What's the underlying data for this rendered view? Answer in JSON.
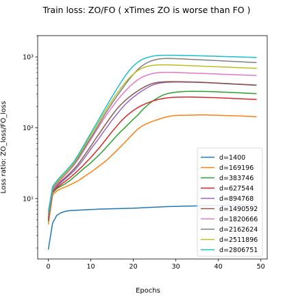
{
  "chart_data": {
    "type": "line",
    "title": "Train loss: ZO/FO ( xTimes ZO is worse than FO )",
    "xlabel": "Epochs",
    "ylabel": "Loss ratio: ZO_loss/FO_loss",
    "y_scale": "log",
    "xlim": [
      -2.5,
      51.5
    ],
    "ylim": [
      1.4,
      2000
    ],
    "xticks": [
      0,
      10,
      20,
      30,
      40,
      50
    ],
    "yticks": [
      10,
      100,
      1000
    ],
    "ytick_labels": [
      "10¹",
      "10²",
      "10³"
    ],
    "grid": false,
    "legend_position": "lower-right",
    "x": [
      0,
      1,
      2,
      3,
      4,
      5,
      6,
      7,
      8,
      9,
      10,
      11,
      12,
      13,
      14,
      15,
      16,
      17,
      18,
      19,
      20,
      21,
      22,
      23,
      24,
      25,
      26,
      27,
      28,
      29,
      30,
      31,
      32,
      33,
      34,
      35,
      36,
      37,
      38,
      39,
      40,
      41,
      42,
      43,
      44,
      45,
      46,
      47,
      48,
      49
    ],
    "series": [
      {
        "name": "d=1400",
        "color": "#1f77b4",
        "values": [
          1.9,
          4.5,
          5.8,
          6.3,
          6.6,
          6.75,
          6.8,
          6.85,
          6.9,
          6.95,
          7.0,
          7.05,
          7.1,
          7.12,
          7.15,
          7.18,
          7.2,
          7.22,
          7.25,
          7.28,
          7.3,
          7.35,
          7.4,
          7.45,
          7.5,
          7.55,
          7.6,
          7.65,
          7.7,
          7.72,
          7.75,
          7.78,
          7.8,
          7.82,
          7.85,
          7.87,
          7.9,
          7.92,
          7.94,
          7.96,
          7.98,
          8.0,
          8.02,
          8.04,
          8.06,
          8.08,
          8.1,
          8.12,
          8.14,
          8.16
        ]
      },
      {
        "name": "d=169196",
        "color": "#ff7f0e",
        "values": [
          4.3,
          11.2,
          12.8,
          13.8,
          14.6,
          15.5,
          16.6,
          17.8,
          19.5,
          21.5,
          23.5,
          26.0,
          29.0,
          32.0,
          36.0,
          41.0,
          47.0,
          54.0,
          62.0,
          72.0,
          83.0,
          95.0,
          105.0,
          113.0,
          120.0,
          126.0,
          132.0,
          138.0,
          143.0,
          147.0,
          149.0,
          150.0,
          150.0,
          150.5,
          151.0,
          151.5,
          152.0,
          151.5,
          151.0,
          150.5,
          150.0,
          149.0,
          148.5,
          148.0,
          147.5,
          147.0,
          146.0,
          145.0,
          144.0,
          143.0
        ]
      },
      {
        "name": "d=383746",
        "color": "#2ca02c",
        "values": [
          4.8,
          12.0,
          13.8,
          15.0,
          16.2,
          17.8,
          20.0,
          22.5,
          25.5,
          28.5,
          32.0,
          36.5,
          41.5,
          48.0,
          56.0,
          65.0,
          76.0,
          88.0,
          100.0,
          115.0,
          132.0,
          150.0,
          175.0,
          200.0,
          225.0,
          248.0,
          270.0,
          290.0,
          303.0,
          312.0,
          318.0,
          322.0,
          325.0,
          326.5,
          327.0,
          326.5,
          326.0,
          325.0,
          324.0,
          322.5,
          321.0,
          319.0,
          317.0,
          315.0,
          313.0,
          311.0,
          309.0,
          307.0,
          305.0,
          303.0
        ]
      },
      {
        "name": "d=627544",
        "color": "#d62728",
        "values": [
          5.0,
          12.3,
          14.2,
          15.8,
          17.5,
          19.5,
          22.0,
          25.0,
          28.5,
          33.0,
          38.0,
          44.5,
          52.0,
          62.0,
          74.0,
          88.0,
          104.0,
          122.0,
          140.0,
          158.0,
          175.0,
          192.0,
          207.0,
          220.0,
          232.0,
          243.0,
          252.0,
          259.0,
          264.0,
          268.0,
          270.0,
          271.0,
          271.5,
          271.5,
          271.0,
          270.0,
          269.0,
          268.0,
          267.0,
          266.0,
          265.0,
          263.0,
          262.0,
          260.0,
          258.5,
          257.0,
          255.5,
          254.0,
          252.5,
          251.0
        ]
      },
      {
        "name": "d=894768",
        "color": "#9467bd",
        "values": [
          5.2,
          12.6,
          14.8,
          16.8,
          19.0,
          21.5,
          24.5,
          28.5,
          34.0,
          41.0,
          50.0,
          60.0,
          72.0,
          88.0,
          106.0,
          128.0,
          152.0,
          180.0,
          210.0,
          240.0,
          270.0,
          300.0,
          330.0,
          360.0,
          388.0,
          410.0,
          425.0,
          433.0,
          438.0,
          441.0,
          442.0,
          442.0,
          441.0,
          440.0,
          439.0,
          437.0,
          435.0,
          433.0,
          430.0,
          427.0,
          424.0,
          421.0,
          418.0,
          415.0,
          412.0,
          409.0,
          406.0,
          403.0,
          400.0,
          397.0
        ]
      },
      {
        "name": "d=1490592",
        "color": "#8c564b",
        "values": [
          5.4,
          12.8,
          15.2,
          17.5,
          19.8,
          22.5,
          26.0,
          30.5,
          37.0,
          45.0,
          55.0,
          68.0,
          83.0,
          102.0,
          124.0,
          150.0,
          180.0,
          210.0,
          240.0,
          270.0,
          300.0,
          330.0,
          360.0,
          388.0,
          412.0,
          430.0,
          440.0,
          445.0,
          447.0,
          448.0,
          448.0,
          447.0,
          446.0,
          444.5,
          443.0,
          441.0,
          439.0,
          436.0,
          433.0,
          430.0,
          427.0,
          424.0,
          421.0,
          418.0,
          415.0,
          412.0,
          409.0,
          406.0,
          403.0,
          400.0
        ]
      },
      {
        "name": "d=1820666",
        "color": "#e377c2",
        "values": [
          5.6,
          13.2,
          15.8,
          18.5,
          21.5,
          25.0,
          29.5,
          35.5,
          44.0,
          55.0,
          68.0,
          85.0,
          106.0,
          132.0,
          162.0,
          196.0,
          235.0,
          278.0,
          325.0,
          375.0,
          425.0,
          475.0,
          515.0,
          548.0,
          572.0,
          590.0,
          600.0,
          605.0,
          606.0,
          605.0,
          603.0,
          600.0,
          597.0,
          594.0,
          591.0,
          588.0,
          585.0,
          582.0,
          579.0,
          576.0,
          573.0,
          570.0,
          567.0,
          564.0,
          561.0,
          558.0,
          555.0,
          552.0,
          549.0,
          546.0
        ]
      },
      {
        "name": "d=2162624",
        "color": "#7f7f7f",
        "values": [
          5.9,
          13.8,
          16.6,
          19.5,
          22.5,
          26.0,
          30.5,
          37.0,
          46.0,
          58.0,
          72.0,
          90.0,
          114.0,
          144.0,
          180.0,
          222.0,
          272.0,
          330.0,
          400.0,
          480.0,
          570.0,
          660.0,
          745.0,
          815.0,
          870.0,
          910.0,
          935.0,
          948.0,
          952.0,
          950.0,
          946.0,
          940.0,
          934.0,
          928.0,
          922.0,
          916.0,
          910.0,
          904.0,
          898.0,
          892.0,
          886.0,
          880.0,
          874.0,
          868.0,
          862.0,
          856.0,
          850.0,
          844.0,
          838.0,
          832.0
        ]
      },
      {
        "name": "d=2511896",
        "color": "#bcbd22",
        "values": [
          6.2,
          14.3,
          17.0,
          19.8,
          22.8,
          26.5,
          31.5,
          39.0,
          49.0,
          62.0,
          78.0,
          98.0,
          124.0,
          157.0,
          196.0,
          242.0,
          296.0,
          358.0,
          428.0,
          502.0,
          575.0,
          640.0,
          692.0,
          728.0,
          752.0,
          766.0,
          772.0,
          774.0,
          773.0,
          770.0,
          766.0,
          762.0,
          758.0,
          754.0,
          750.0,
          746.0,
          742.0,
          738.0,
          734.0,
          730.0,
          726.0,
          722.0,
          718.0,
          714.0,
          710.0,
          706.0,
          702.0,
          698.0,
          694.0,
          690.0
        ]
      },
      {
        "name": "d=2806751",
        "color": "#17becf",
        "values": [
          6.5,
          14.8,
          17.8,
          20.8,
          24.0,
          28.0,
          33.0,
          41.0,
          52.0,
          66.0,
          84.0,
          106.0,
          135.0,
          172.0,
          218.0,
          275.0,
          345.0,
          430.0,
          530.0,
          640.0,
          745.0,
          840.0,
          915.0,
          970.0,
          1010.0,
          1035.0,
          1050.0,
          1056.0,
          1058.0,
          1057.0,
          1055.0,
          1052.0,
          1049.0,
          1046.0,
          1043.0,
          1040.0,
          1036.0,
          1032.0,
          1028.0,
          1024.0,
          1020.0,
          1016.0,
          1012.0,
          1008.0,
          1004.0,
          1000.0,
          996.0,
          992.0,
          988.0,
          984.0
        ]
      }
    ]
  }
}
